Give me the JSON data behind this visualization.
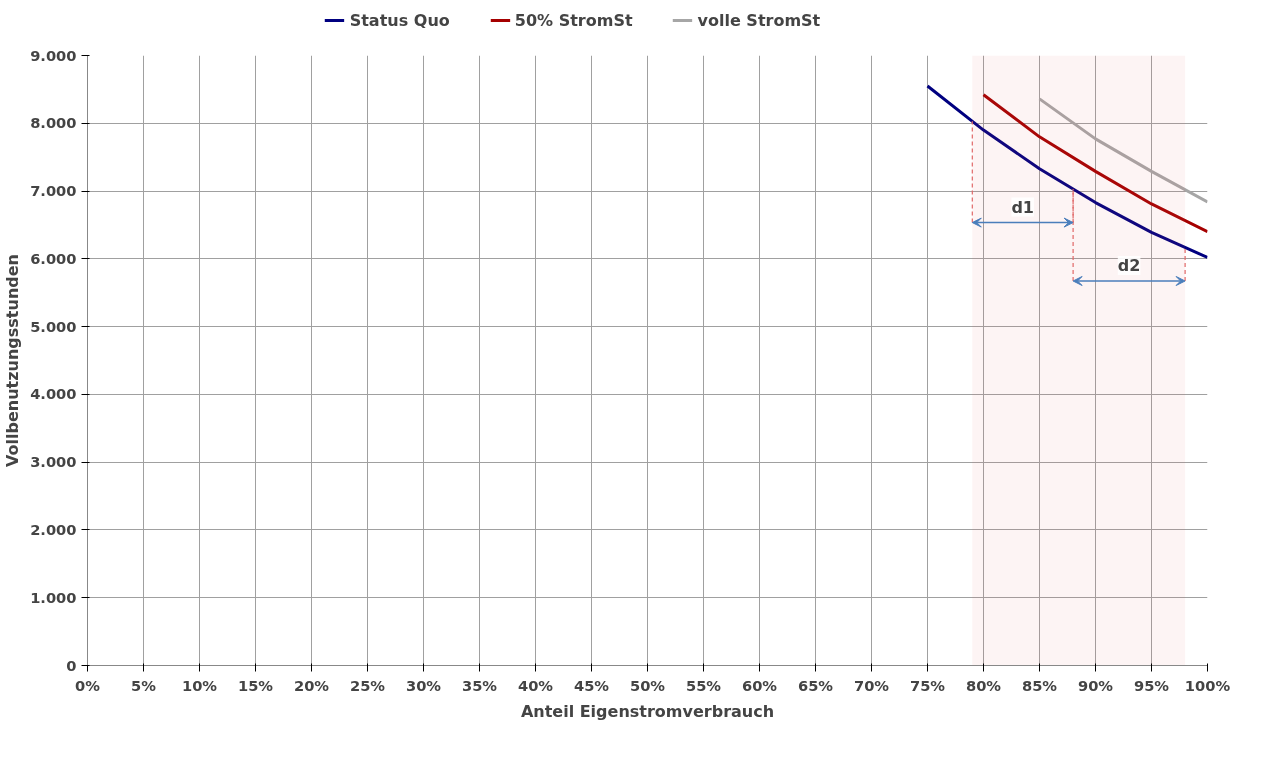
{
  "chart_data": {
    "type": "line",
    "xlabel": "Anteil Eigenstromverbrauch",
    "ylabel": "Vollbenutzungsstunden",
    "xlim": [
      0,
      100
    ],
    "ylim": [
      0,
      9000
    ],
    "xticks": [
      {
        "value": 0,
        "label": "0%"
      },
      {
        "value": 5,
        "label": "5%"
      },
      {
        "value": 10,
        "label": "10%"
      },
      {
        "value": 15,
        "label": "15%"
      },
      {
        "value": 20,
        "label": "20%"
      },
      {
        "value": 25,
        "label": "25%"
      },
      {
        "value": 30,
        "label": "30%"
      },
      {
        "value": 35,
        "label": "35%"
      },
      {
        "value": 40,
        "label": "40%"
      },
      {
        "value": 45,
        "label": "45%"
      },
      {
        "value": 50,
        "label": "50%"
      },
      {
        "value": 55,
        "label": "55%"
      },
      {
        "value": 60,
        "label": "60%"
      },
      {
        "value": 65,
        "label": "65%"
      },
      {
        "value": 70,
        "label": "70%"
      },
      {
        "value": 75,
        "label": "75%"
      },
      {
        "value": 80,
        "label": "80%"
      },
      {
        "value": 85,
        "label": "85%"
      },
      {
        "value": 90,
        "label": "90%"
      },
      {
        "value": 95,
        "label": "95%"
      },
      {
        "value": 100,
        "label": "100%"
      }
    ],
    "yticks": [
      0,
      {
        "value": 1000,
        "label": "1.000"
      },
      {
        "value": 2000,
        "label": "2.000"
      },
      {
        "value": 3000,
        "label": "3.000"
      },
      {
        "value": 4000,
        "label": "4.000"
      },
      {
        "value": 5000,
        "label": "5.000"
      },
      {
        "value": 6000,
        "label": "6.000"
      },
      {
        "value": 7000,
        "label": "7.000"
      },
      {
        "value": 8000,
        "label": "8.000"
      },
      {
        "value": 9000,
        "label": "9.000"
      }
    ],
    "grid": true,
    "legend": "top",
    "marker": "none",
    "line_style": "solid",
    "series": [
      {
        "name": "Status Quo",
        "color": "#000080",
        "x": [
          75,
          80,
          85,
          90,
          95,
          100
        ],
        "values": [
          8550,
          7900,
          7330,
          6830,
          6390,
          6020
        ]
      },
      {
        "name": "50% StromSt",
        "color": "#a50000",
        "x": [
          80,
          85,
          90,
          95,
          100
        ],
        "values": [
          8420,
          7800,
          7290,
          6810,
          6400
        ]
      },
      {
        "name": "volle StromSt",
        "color": "#a6a6a6",
        "x": [
          85,
          90,
          95,
          100
        ],
        "values": [
          8360,
          7770,
          7290,
          6840
        ]
      }
    ],
    "bands": [
      {
        "axis": "x",
        "from": 79,
        "to": 88,
        "label": "d1",
        "color": "#e06666"
      },
      {
        "axis": "x",
        "from": 88,
        "to": 98,
        "label": "d2",
        "color": "#e06666"
      }
    ]
  }
}
